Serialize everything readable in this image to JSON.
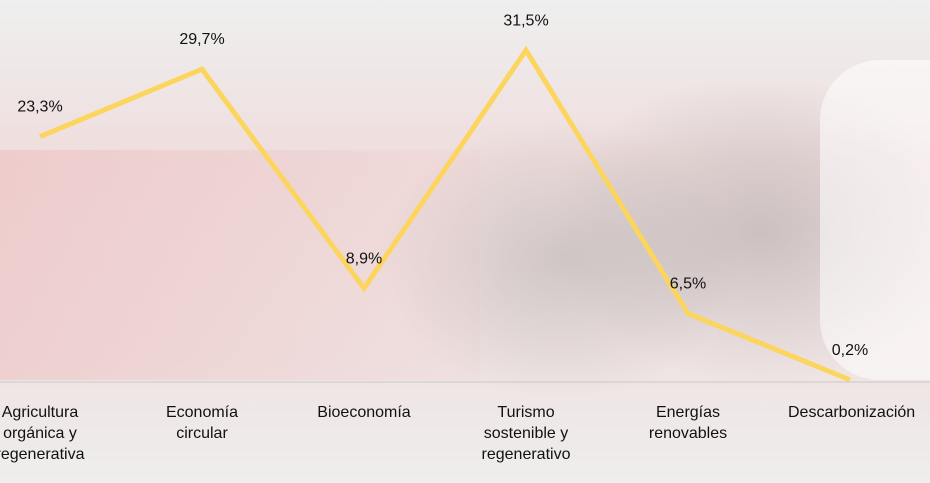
{
  "chart_data": {
    "type": "line",
    "categories": [
      "Agricultura orgánica y regenerativa",
      "Economía circular",
      "Bioeconomía",
      "Turismo sostenible y regenerativo",
      "Energías renovables",
      "Descarbonización"
    ],
    "series": [
      {
        "name": null,
        "color": "#fbd55e",
        "values": [
          23.3,
          29.7,
          8.9,
          31.5,
          6.5,
          0.2
        ],
        "value_labels": [
          "23,3%",
          "29,7%",
          "8,9%",
          "31,5%",
          "6,5%",
          "0,2%"
        ]
      }
    ],
    "ylim": [
      0,
      32
    ]
  }
}
